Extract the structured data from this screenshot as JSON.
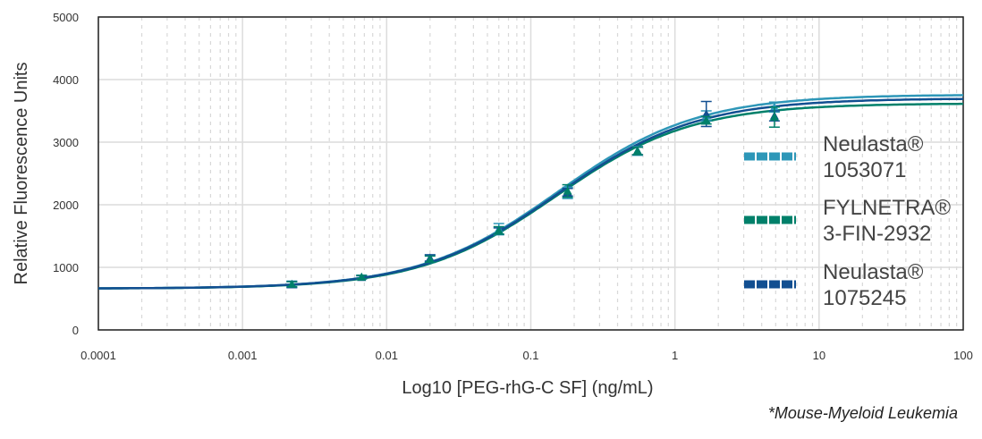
{
  "chart_data": {
    "type": "line",
    "title": "",
    "xlabel": "Log10 [PEG-rhG-C SF] (ng/mL)",
    "ylabel": "Relative Fluorescence Units",
    "xscale": "log",
    "xlim": [
      0.0001,
      100
    ],
    "ylim": [
      0,
      5000
    ],
    "x_ticks": [
      "0.0001",
      "0.001",
      "0.01",
      "0.1",
      "1",
      "10",
      "100"
    ],
    "y_ticks": [
      "0",
      "1000",
      "2000",
      "3000",
      "4000",
      "5000"
    ],
    "grid": true,
    "legend_position": "right",
    "footnote": "*Mouse-Myeloid Leukemia",
    "x": [
      0.0022,
      0.0067,
      0.02,
      0.06,
      0.18,
      0.55,
      1.65,
      4.9
    ],
    "series": [
      {
        "name": "Neulasta®",
        "lot": "1053071",
        "color": "#2e97b8",
        "values": [
          730,
          845,
          1140,
          1610,
          2190,
          2860,
          3420,
          3560
        ],
        "errors": [
          50,
          30,
          60,
          90,
          90,
          70,
          80,
          80
        ],
        "fit": {
          "bottom": 660,
          "top": 3760,
          "ec50": 0.155,
          "hill": 0.9
        }
      },
      {
        "name": "FYLNETRA®",
        "lot": "3-FIN-2932",
        "color": "#00806a",
        "values": [
          730,
          845,
          1130,
          1590,
          2220,
          2860,
          3350,
          3400
        ],
        "errors": [
          40,
          25,
          50,
          60,
          100,
          60,
          60,
          160
        ],
        "fit": {
          "bottom": 660,
          "top": 3620,
          "ec50": 0.15,
          "hill": 0.92
        }
      },
      {
        "name": "Neulasta®",
        "lot": "1075245",
        "color": "#124f91",
        "values": [
          725,
          840,
          1150,
          1580,
          2200,
          2860,
          3450,
          3420
        ],
        "errors": [
          50,
          25,
          50,
          50,
          60,
          60,
          200,
          80
        ],
        "fit": {
          "bottom": 660,
          "top": 3700,
          "ec50": 0.155,
          "hill": 0.9
        }
      }
    ]
  }
}
